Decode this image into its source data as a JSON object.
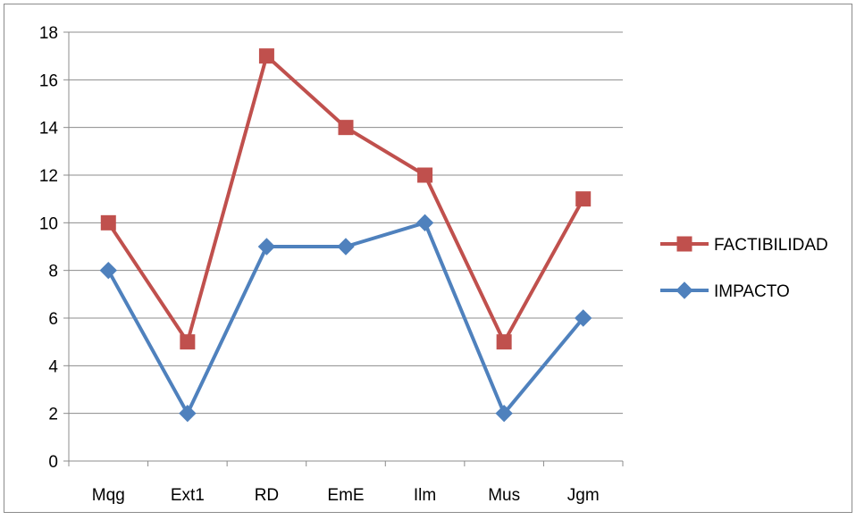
{
  "chart_data": {
    "type": "line",
    "title": "",
    "xlabel": "",
    "ylabel": "",
    "categories": [
      "Mqg",
      "Ext1",
      "RD",
      "EmE",
      "Ilm",
      "Mus",
      "Jgm"
    ],
    "ylim": [
      0,
      18
    ],
    "yticks": [
      "0",
      "2",
      "4",
      "6",
      "8",
      "10",
      "12",
      "14",
      "16",
      "18"
    ],
    "grid": true,
    "legend_position": "right",
    "series": [
      {
        "name": "FACTIBILIDAD",
        "values": [
          10,
          5,
          17,
          14,
          12,
          5,
          11
        ],
        "color": "#c0504d",
        "marker": "square"
      },
      {
        "name": "IMPACTO",
        "values": [
          8,
          2,
          9,
          9,
          10,
          2,
          6
        ],
        "color": "#4f81bd",
        "marker": "diamond"
      }
    ]
  }
}
